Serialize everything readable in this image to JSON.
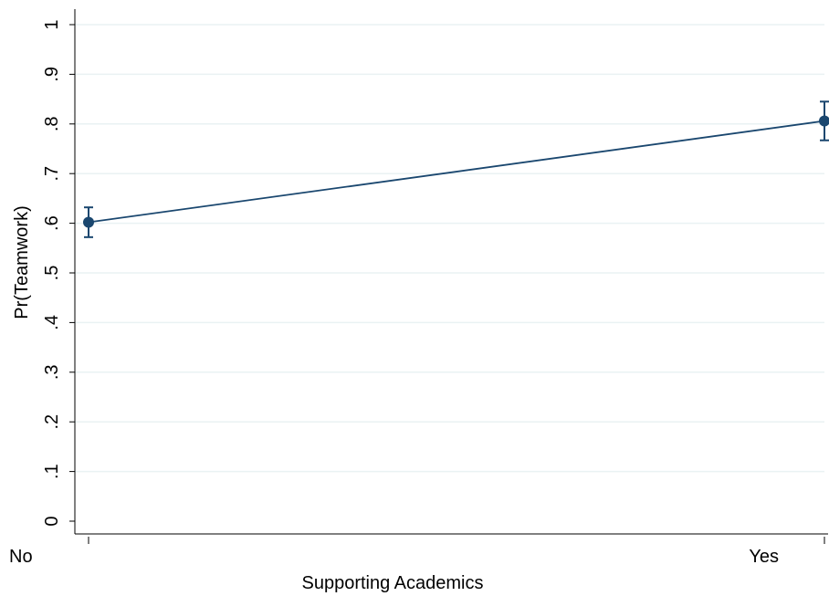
{
  "chart_data": {
    "type": "line",
    "categories": [
      "No",
      "Yes"
    ],
    "x_ticks": [
      "No",
      "Yes"
    ],
    "series": [
      {
        "values": [
          0.602,
          0.806
        ],
        "ci_lower": [
          0.572,
          0.767
        ],
        "ci_upper": [
          0.632,
          0.845
        ],
        "color": "#1a476f"
      }
    ],
    "ylim": [
      0,
      1
    ],
    "y_ticks": [
      0,
      0.1,
      0.2,
      0.3,
      0.4,
      0.5,
      0.6,
      0.7,
      0.8,
      0.9,
      1
    ],
    "y_tick_labels": [
      "0",
      ".1",
      ".2",
      ".3",
      ".4",
      ".5",
      ".6",
      ".7",
      ".8",
      ".9",
      "1"
    ],
    "title": "",
    "xlabel": "Supporting Academics",
    "ylabel": "Pr(Teamwork)",
    "grid": true,
    "grid_color": "#eaf2f3",
    "legend": "none"
  }
}
